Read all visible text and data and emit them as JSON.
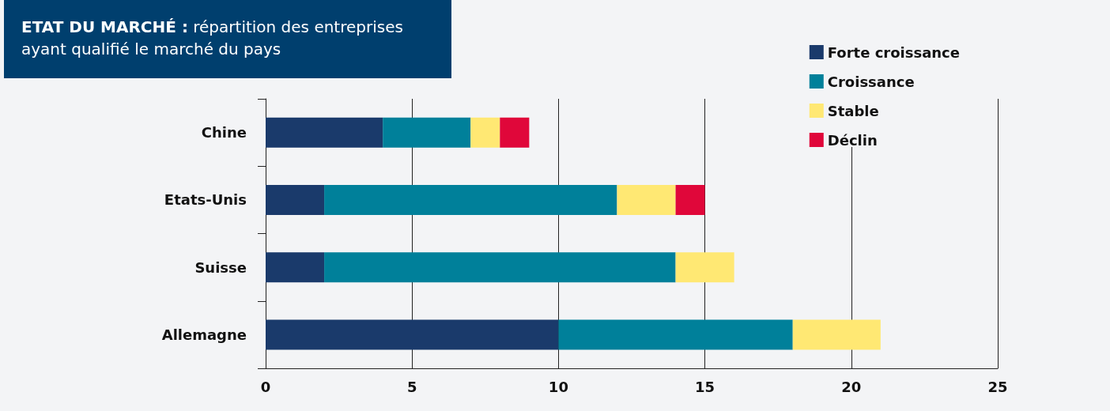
{
  "chart_data": {
    "type": "bar",
    "orientation": "horizontal",
    "stacked": true,
    "title": "ETAT DU MARCHÉ :",
    "subtitle": "répartition des entreprises ayant qualifié le marché du pays",
    "categories": [
      "Chine",
      "Etats-Unis",
      "Suisse",
      "Allemagne"
    ],
    "series": [
      {
        "name": "Forte croissance",
        "color": "#1a3a6b",
        "values": [
          4,
          2,
          2,
          10
        ]
      },
      {
        "name": "Croissance",
        "color": "#00809a",
        "values": [
          3,
          10,
          12,
          8
        ]
      },
      {
        "name": "Stable",
        "color": "#ffe873",
        "values": [
          1,
          2,
          2,
          3
        ]
      },
      {
        "name": "Déclin",
        "color": "#e0073a",
        "values": [
          1,
          1,
          null,
          null
        ]
      }
    ],
    "xlim": [
      0,
      25
    ],
    "xticks": [
      0,
      5,
      10,
      15,
      20,
      25
    ],
    "grid": "x",
    "legend": "top right"
  }
}
